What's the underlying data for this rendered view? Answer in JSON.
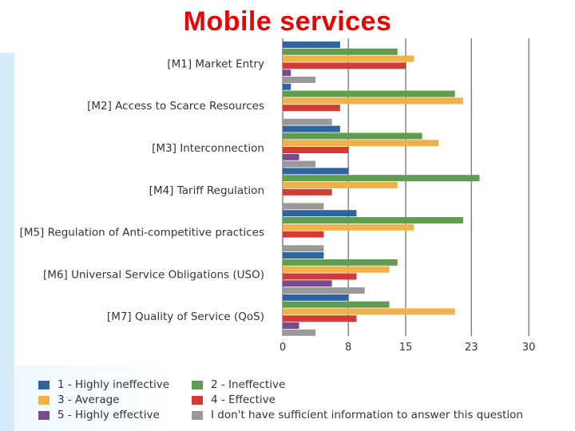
{
  "title": "Mobile services",
  "chart_data": {
    "type": "bar",
    "orientation": "horizontal",
    "title": "Mobile services",
    "categories": [
      "[M1] Market Entry",
      "[M2] Access to Scarce Resources",
      "[M3] Interconnection",
      "[M4] Tariff Regulation",
      "[M5] Regulation of Anti-competitive practices",
      "[M6] Universal Service Obligations (USO)",
      "[M7] Quality of Service (QoS)"
    ],
    "series": [
      {
        "name": "1 - Highly ineffective",
        "color": "#2f64a0",
        "values": [
          7,
          1,
          7,
          8,
          9,
          5,
          8
        ]
      },
      {
        "name": "2 - Ineffective",
        "color": "#5f9e4f",
        "values": [
          14,
          21,
          17,
          24,
          22,
          14,
          13
        ]
      },
      {
        "name": "3 - Average",
        "color": "#f0b14a",
        "values": [
          16,
          22,
          19,
          14,
          16,
          13,
          21
        ]
      },
      {
        "name": "4 - Effective",
        "color": "#d23b36",
        "values": [
          15,
          7,
          8,
          6,
          5,
          9,
          9
        ]
      },
      {
        "name": "5 - Highly effective",
        "color": "#7a4a8e",
        "values": [
          1,
          0,
          2,
          0,
          0,
          6,
          2
        ]
      },
      {
        "name": "I don't have sufficient information to answer this question",
        "color": "#999999",
        "values": [
          4,
          6,
          4,
          5,
          5,
          10,
          4
        ]
      }
    ],
    "xaxis": {
      "ticks": [
        0,
        8,
        15,
        23,
        30
      ],
      "tick_labels": [
        "0",
        "8",
        "15",
        "23",
        "30"
      ],
      "range": [
        0,
        30
      ]
    },
    "grid": true,
    "legend_position": "bottom"
  }
}
